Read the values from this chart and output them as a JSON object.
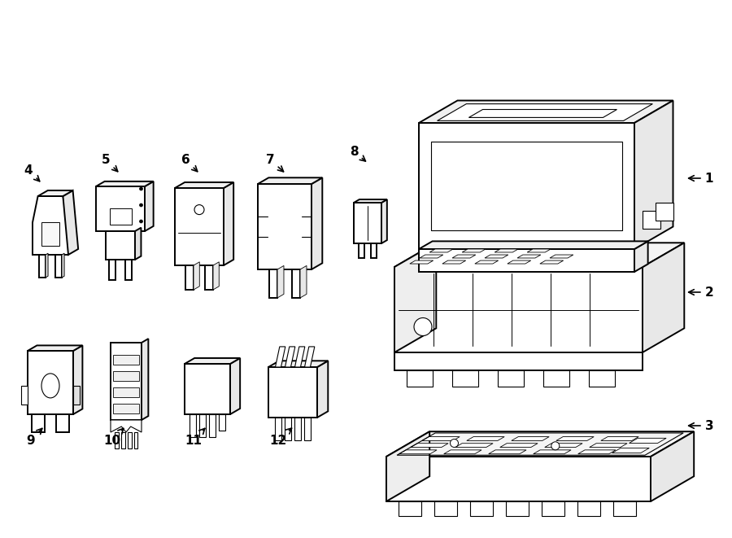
{
  "bg_color": "#ffffff",
  "lc": "#000000",
  "lw": 1.4,
  "tlw": 0.8,
  "fig_w": 9.0,
  "fig_h": 6.61,
  "iso_sx": 0.45,
  "iso_sy": 0.28
}
